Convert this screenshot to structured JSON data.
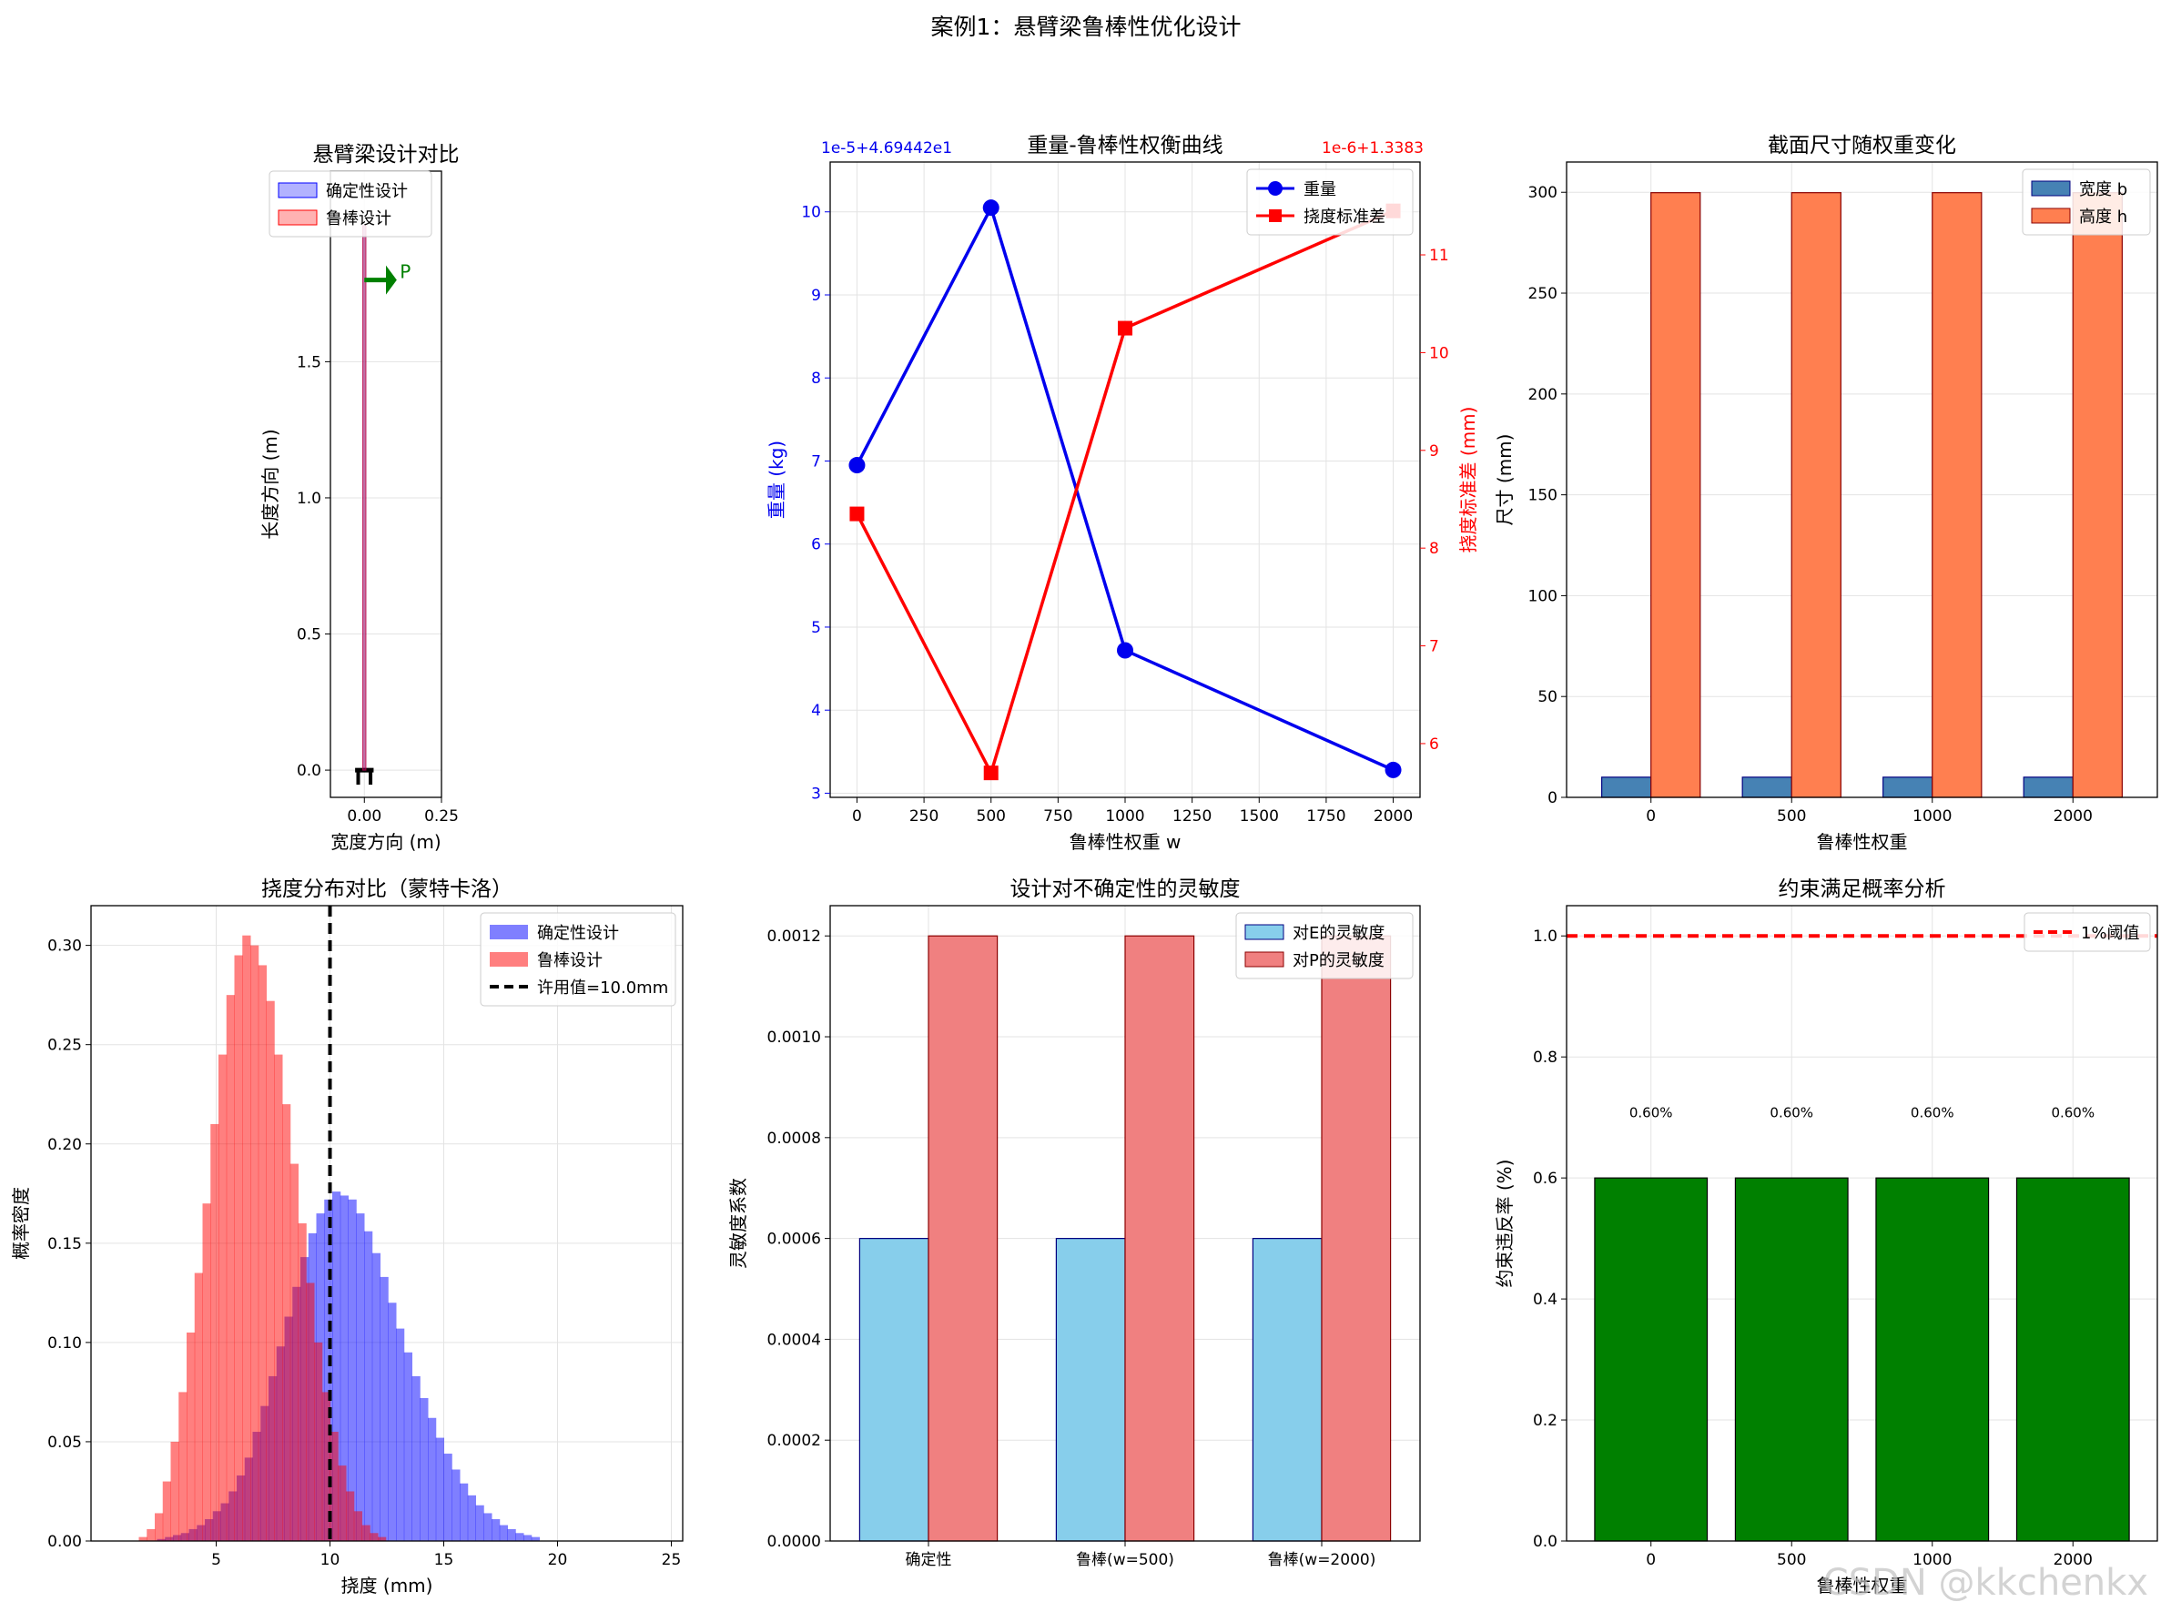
{
  "figure": {
    "suptitle": "案例1：悬臂梁鲁棒性优化设计",
    "watermark": "CSDN @kkchenkx"
  },
  "chart_data": [
    {
      "id": "beam",
      "type": "line",
      "title": "悬臂梁设计对比",
      "xlabel": "宽度方向 (m)",
      "ylabel": "长度方向 (m)",
      "xlim": [
        -0.11,
        0.25
      ],
      "ylim": [
        -0.1,
        2.2
      ],
      "xticks": [
        0.0,
        0.25
      ],
      "xtick_labels": [
        "0.00",
        "0.25"
      ],
      "yticks": [
        0.0,
        0.5,
        1.0,
        1.5
      ],
      "ytick_labels": [
        "0.0",
        "0.5",
        "1.0",
        "1.5"
      ],
      "legend": [
        "确定性设计",
        "鲁棒设计"
      ],
      "legend_loc": "upper-right",
      "load_label": "P",
      "beam_length": 2.0,
      "colors": {
        "deterministic": "#aaaaff",
        "robust": "#ffaaaa",
        "load": "#008000"
      }
    },
    {
      "id": "tradeoff",
      "type": "line",
      "title": "重量-鲁棒性权衡曲线",
      "xlabel": "鲁棒性权重 w",
      "ylabel_left": "重量 (kg)",
      "ylabel_right": "挠度标准差 (mm)",
      "offset_left": "1e-5+4.69442e1",
      "offset_right": "1e-6+1.3383",
      "x": [
        0,
        500,
        1000,
        2000
      ],
      "xticks": [
        0,
        250,
        500,
        750,
        1000,
        1250,
        1500,
        1750,
        2000
      ],
      "xlim": [
        -100,
        2100
      ],
      "series": [
        {
          "name": "重量",
          "axis": "left",
          "values": [
            6.95,
            10.05,
            4.72,
            3.28
          ],
          "color": "#0000ee",
          "marker": "circle"
        },
        {
          "name": "挠度标准差",
          "axis": "right",
          "values": [
            8.35,
            5.7,
            10.25,
            11.45
          ],
          "color": "#ff0000",
          "marker": "square"
        }
      ],
      "ylim_left": [
        2.95,
        10.6
      ],
      "yticks_left": [
        3,
        4,
        5,
        6,
        7,
        8,
        9,
        10
      ],
      "ylim_right": [
        5.45,
        11.95
      ],
      "yticks_right": [
        6,
        7,
        8,
        9,
        10,
        11
      ]
    },
    {
      "id": "section",
      "type": "bar",
      "title": "截面尺寸随权重变化",
      "xlabel": "鲁棒性权重",
      "ylabel": "尺寸 (mm)",
      "categories": [
        "0",
        "500",
        "1000",
        "2000"
      ],
      "series": [
        {
          "name": "宽度 b",
          "values": [
            10,
            10,
            10,
            10
          ],
          "color": "#4682b4",
          "edge": "#000080"
        },
        {
          "name": "高度 h",
          "values": [
            299.8,
            299.8,
            299.8,
            299.8
          ],
          "color": "#ff7f50",
          "edge": "#8b0000"
        }
      ],
      "ylim": [
        0,
        315
      ],
      "yticks": [
        0,
        50,
        100,
        150,
        200,
        250,
        300
      ]
    },
    {
      "id": "hist",
      "type": "bar",
      "title": "挠度分布对比（蒙特卡洛）",
      "xlabel": "挠度 (mm)",
      "ylabel": "概率密度",
      "xlim": [
        -0.5,
        25.5
      ],
      "xticks": [
        5,
        10,
        15,
        20,
        25
      ],
      "ylim": [
        0,
        0.32
      ],
      "yticks": [
        0.0,
        0.05,
        0.1,
        0.15,
        0.2,
        0.25,
        0.3
      ],
      "ytick_labels": [
        "0.00",
        "0.05",
        "0.10",
        "0.15",
        "0.20",
        "0.25",
        "0.30"
      ],
      "bin_width": 0.35,
      "series": [
        {
          "name": "确定性设计",
          "color": "#0000ff",
          "start": 2.4,
          "values": [
            0.001,
            0.002,
            0.003,
            0.004,
            0.006,
            0.008,
            0.011,
            0.015,
            0.019,
            0.025,
            0.033,
            0.042,
            0.055,
            0.068,
            0.083,
            0.098,
            0.113,
            0.128,
            0.143,
            0.155,
            0.165,
            0.172,
            0.176,
            0.174,
            0.172,
            0.165,
            0.156,
            0.145,
            0.133,
            0.12,
            0.107,
            0.095,
            0.083,
            0.072,
            0.062,
            0.052,
            0.044,
            0.036,
            0.029,
            0.023,
            0.018,
            0.014,
            0.011,
            0.008,
            0.006,
            0.004,
            0.003,
            0.002
          ]
        },
        {
          "name": "鲁棒设计",
          "color": "#ff0000",
          "start": 1.6,
          "values": [
            0.002,
            0.006,
            0.014,
            0.03,
            0.05,
            0.075,
            0.105,
            0.135,
            0.17,
            0.21,
            0.245,
            0.275,
            0.295,
            0.305,
            0.3,
            0.29,
            0.272,
            0.245,
            0.22,
            0.19,
            0.16,
            0.13,
            0.1,
            0.075,
            0.055,
            0.038,
            0.025,
            0.015,
            0.008,
            0.004,
            0.002
          ]
        }
      ],
      "reference": {
        "name": "许用值=10.0mm",
        "x": 10.0
      }
    },
    {
      "id": "sensitivity",
      "type": "bar",
      "title": "设计对不确定性的灵敏度",
      "ylabel": "灵敏度系数",
      "categories": [
        "确定性",
        "鲁棒(w=500)",
        "鲁棒(w=2000)"
      ],
      "series": [
        {
          "name": "对E的灵敏度",
          "values": [
            0.0006,
            0.0006,
            0.0006
          ],
          "color": "#87ceeb",
          "edge": "#000080"
        },
        {
          "name": "对P的灵敏度",
          "values": [
            0.0012,
            0.0012,
            0.0012
          ],
          "color": "#f08080",
          "edge": "#8b0000"
        }
      ],
      "ylim": [
        0,
        0.00126
      ],
      "yticks": [
        0.0,
        0.0002,
        0.0004,
        0.0006,
        0.0008,
        0.001,
        0.0012
      ],
      "ytick_labels": [
        "0.0000",
        "0.0002",
        "0.0004",
        "0.0006",
        "0.0008",
        "0.0010",
        "0.0012"
      ]
    },
    {
      "id": "constraint",
      "type": "bar",
      "title": "约束满足概率分析",
      "xlabel": "鲁棒性权重",
      "ylabel": "约束违反率 (%)",
      "categories": [
        "0",
        "500",
        "1000",
        "2000"
      ],
      "values": [
        0.6,
        0.6,
        0.6,
        0.6
      ],
      "data_labels": [
        "0.60%",
        "0.60%",
        "0.60%",
        "0.60%"
      ],
      "color": "#008000",
      "ylim": [
        0,
        1.05
      ],
      "yticks": [
        0.0,
        0.2,
        0.4,
        0.6,
        0.8,
        1.0
      ],
      "ytick_labels": [
        "0.0",
        "0.2",
        "0.4",
        "0.6",
        "0.8",
        "1.0"
      ],
      "threshold": {
        "name": "1%阈值",
        "value": 1.0,
        "color": "#ff0000"
      }
    }
  ]
}
